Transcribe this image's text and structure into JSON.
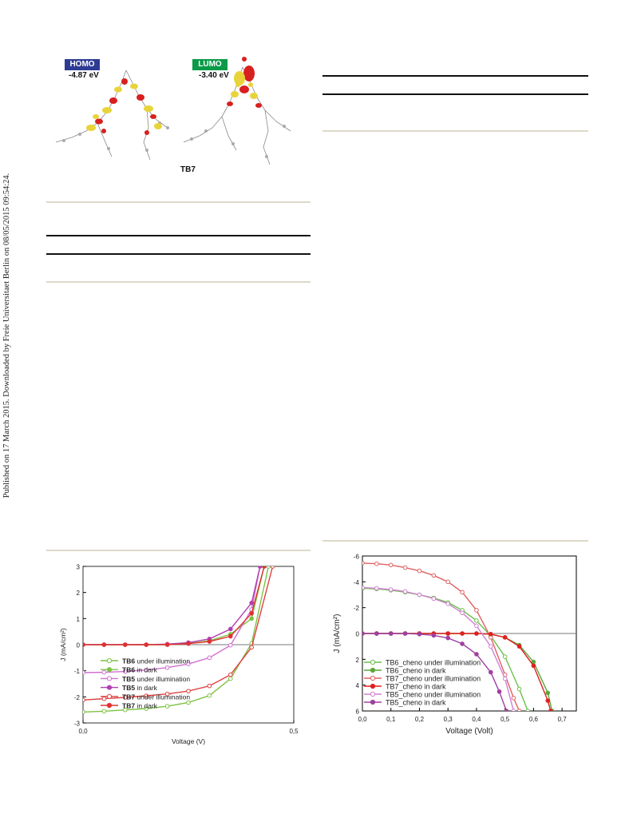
{
  "side_note": "Published on 17 March 2015. Downloaded by Freie Universitaet Berlin on 08/05/2015 09:54:24.",
  "orbitals": {
    "homo": {
      "label": "HOMO",
      "energy": "-4.87 eV",
      "color": "#2e3b93"
    },
    "lumo": {
      "label": "LUMO",
      "energy": "-3.40 eV",
      "color": "#0a9a48"
    },
    "molecule": "TB7"
  },
  "chart_data": [
    {
      "type": "line",
      "xlabel": "Voltage (V)",
      "ylabel": "J (mA/cm²)",
      "xlim": [
        0,
        0.5
      ],
      "ylim": [
        3,
        -3
      ],
      "x_ticks": [
        "0,0",
        "0,5"
      ],
      "y_ticks": [
        "-3",
        "-2",
        "-1",
        "0",
        "1",
        "2",
        "3"
      ],
      "legend_position": "bottom-left",
      "series": [
        {
          "name_bold": "TB6",
          "name_rest": " under illumination",
          "color": "#7dc242",
          "marker": "open",
          "x": [
            0,
            0.05,
            0.1,
            0.15,
            0.2,
            0.25,
            0.3,
            0.35,
            0.4,
            0.44
          ],
          "y": [
            -2.58,
            -2.55,
            -2.5,
            -2.45,
            -2.36,
            -2.22,
            -1.95,
            -1.3,
            0.05,
            3
          ]
        },
        {
          "name_bold": "TB6",
          "name_rest": " in dark",
          "color": "#7dc242",
          "marker": "filled",
          "x": [
            0,
            0.05,
            0.1,
            0.15,
            0.2,
            0.25,
            0.3,
            0.35,
            0.4,
            0.43
          ],
          "y": [
            0,
            0,
            0,
            0,
            0,
            0.05,
            0.15,
            0.4,
            1.0,
            3
          ]
        },
        {
          "name_bold": "TB5",
          "name_rest": " under illumination",
          "color": "#d070d0",
          "marker": "open",
          "x": [
            0,
            0.05,
            0.1,
            0.15,
            0.2,
            0.25,
            0.3,
            0.35,
            0.4,
            0.42
          ],
          "y": [
            -1.07,
            -1.06,
            -1.03,
            -0.97,
            -0.88,
            -0.74,
            -0.5,
            -0.02,
            1.35,
            3
          ]
        },
        {
          "name_bold": "TB5",
          "name_rest": " in dark",
          "color": "#b040b0",
          "marker": "filled",
          "x": [
            0,
            0.05,
            0.1,
            0.15,
            0.2,
            0.25,
            0.3,
            0.35,
            0.4,
            0.42
          ],
          "y": [
            0,
            0,
            0,
            0,
            0.02,
            0.08,
            0.22,
            0.6,
            1.6,
            3
          ]
        },
        {
          "name_bold": "TB7",
          "name_rest": " under illumination",
          "color": "#e04040",
          "marker": "open",
          "x": [
            0,
            0.05,
            0.1,
            0.15,
            0.2,
            0.25,
            0.3,
            0.35,
            0.4,
            0.45
          ],
          "y": [
            -2.12,
            -2.07,
            -2.02,
            -1.96,
            -1.89,
            -1.78,
            -1.58,
            -1.15,
            -0.1,
            3
          ]
        },
        {
          "name_bold": "TB7",
          "name_rest": " in dark",
          "color": "#e03030",
          "marker": "filled",
          "x": [
            0,
            0.05,
            0.1,
            0.15,
            0.2,
            0.25,
            0.3,
            0.35,
            0.4,
            0.43
          ],
          "y": [
            0,
            0,
            0,
            0,
            0,
            0.04,
            0.12,
            0.32,
            1.2,
            3
          ]
        }
      ]
    },
    {
      "type": "line",
      "xlabel": "Voltage (Volt)",
      "ylabel": "J (mA/cm²)",
      "xlim": [
        0,
        0.75
      ],
      "ylim": [
        -6,
        6
      ],
      "x_ticks": [
        "0,0",
        "0,1",
        "0,2",
        "0,3",
        "0,4",
        "0,5",
        "0,6",
        "0,7"
      ],
      "y_ticks": [
        "-6",
        "-4",
        "-2",
        "0",
        "2",
        "4",
        "6"
      ],
      "legend_position": "bottom-left",
      "series": [
        {
          "name": "TB6_cheno under illumination",
          "color": "#6cbf4a",
          "marker": "open",
          "x": [
            0,
            0.05,
            0.1,
            0.15,
            0.2,
            0.25,
            0.3,
            0.35,
            0.4,
            0.45,
            0.5,
            0.55,
            0.58
          ],
          "y": [
            -3.5,
            -3.45,
            -3.35,
            -3.2,
            -3.0,
            -2.75,
            -2.4,
            -1.8,
            -1.0,
            0.2,
            1.8,
            4.3,
            6
          ]
        },
        {
          "name": "TB6_cheno in dark",
          "color": "#5aa83a",
          "marker": "filled",
          "x": [
            0,
            0.05,
            0.1,
            0.15,
            0.2,
            0.25,
            0.3,
            0.35,
            0.4,
            0.45,
            0.5,
            0.55,
            0.6,
            0.65,
            0.665
          ],
          "y": [
            0,
            0,
            0,
            0,
            0,
            0,
            0,
            0,
            0,
            0.05,
            0.3,
            0.9,
            2.2,
            4.6,
            6
          ]
        },
        {
          "name": "TB7_cheno under illumination",
          "color": "#e06060",
          "marker": "open",
          "x": [
            0,
            0.05,
            0.1,
            0.15,
            0.2,
            0.25,
            0.3,
            0.35,
            0.4,
            0.45,
            0.5,
            0.53,
            0.55
          ],
          "y": [
            -5.45,
            -5.4,
            -5.3,
            -5.1,
            -4.85,
            -4.5,
            -4.0,
            -3.2,
            -1.8,
            0.3,
            3.2,
            5.0,
            6
          ]
        },
        {
          "name": "TB7_cheno in dark",
          "color": "#e02020",
          "marker": "filled",
          "x": [
            0,
            0.05,
            0.1,
            0.15,
            0.2,
            0.25,
            0.3,
            0.35,
            0.4,
            0.45,
            0.5,
            0.55,
            0.6,
            0.65,
            0.66
          ],
          "y": [
            0,
            0,
            0,
            0,
            0,
            0,
            0,
            0,
            0,
            0.05,
            0.3,
            1.0,
            2.5,
            5.2,
            6
          ]
        },
        {
          "name": "TB5_cheno under illumination",
          "color": "#d080d0",
          "marker": "open",
          "x": [
            0,
            0.05,
            0.1,
            0.15,
            0.2,
            0.25,
            0.3,
            0.35,
            0.4,
            0.45,
            0.5,
            0.53
          ],
          "y": [
            -3.55,
            -3.5,
            -3.4,
            -3.25,
            -3.0,
            -2.7,
            -2.3,
            -1.6,
            -0.6,
            1.0,
            3.5,
            6
          ]
        },
        {
          "name": "TB5_cheno in dark",
          "color": "#a040a0",
          "marker": "filled",
          "x": [
            0,
            0.05,
            0.1,
            0.15,
            0.2,
            0.25,
            0.3,
            0.35,
            0.4,
            0.45,
            0.48,
            0.505
          ],
          "y": [
            0,
            0,
            0,
            0,
            0.05,
            0.15,
            0.35,
            0.8,
            1.6,
            3.0,
            4.5,
            6
          ]
        }
      ]
    }
  ]
}
